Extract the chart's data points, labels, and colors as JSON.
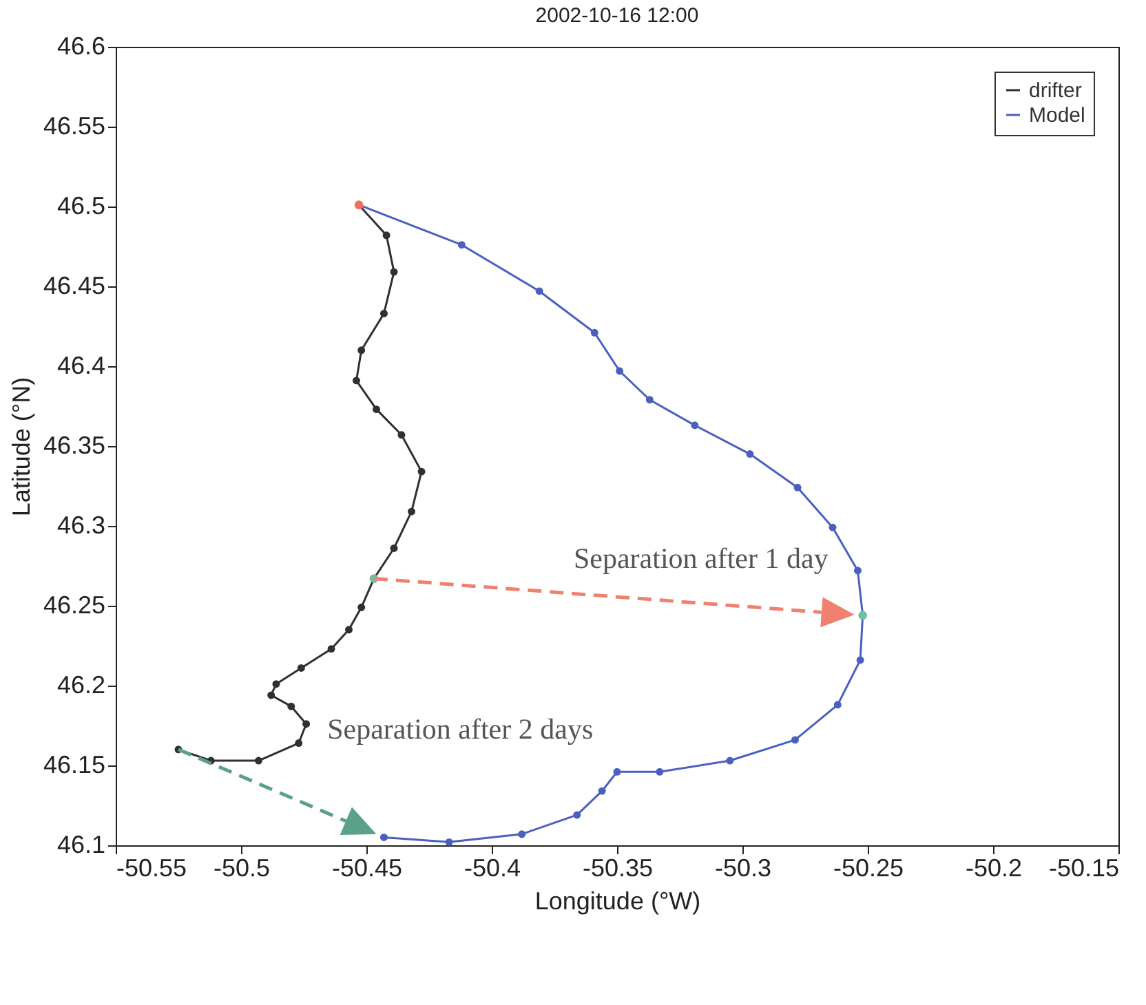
{
  "chart_data": {
    "type": "line",
    "title": "2002-10-16 12:00",
    "xlabel": "Longitude (°W)",
    "ylabel": "Latitude (°N)",
    "xlim": [
      -50.55,
      -50.15
    ],
    "xticks": [
      -50.55,
      -50.5,
      -50.45,
      -50.4,
      -50.35,
      -50.3,
      -50.25,
      -50.2,
      -50.15
    ],
    "ylim": [
      46.1,
      46.6
    ],
    "yticks": [
      46.1,
      46.15,
      46.2,
      46.25,
      46.3,
      46.35,
      46.4,
      46.45,
      46.5,
      46.55,
      46.6
    ],
    "legend": "top right",
    "marker": "circle",
    "grid": false,
    "series": [
      {
        "name": "drifter",
        "color": "#303030",
        "x": [
          -50.453,
          -50.442,
          -50.439,
          -50.443,
          -50.452,
          -50.454,
          -50.446,
          -50.436,
          -50.428,
          -50.432,
          -50.439,
          -50.447,
          -50.452,
          -50.457,
          -50.464,
          -50.476,
          -50.486,
          -50.488,
          -50.48,
          -50.474,
          -50.477,
          -50.493,
          -50.512,
          -50.525
        ],
        "values": [
          46.501,
          46.482,
          46.459,
          46.433,
          46.41,
          46.391,
          46.373,
          46.357,
          46.334,
          46.309,
          46.286,
          46.267,
          46.249,
          46.235,
          46.223,
          46.211,
          46.201,
          46.194,
          46.187,
          46.176,
          46.164,
          46.153,
          46.153,
          46.16
        ]
      },
      {
        "name": "Model",
        "color": "#4a5fc0",
        "x": [
          -50.453,
          -50.412,
          -50.381,
          -50.359,
          -50.349,
          -50.337,
          -50.319,
          -50.297,
          -50.278,
          -50.264,
          -50.254,
          -50.252,
          -50.253,
          -50.262,
          -50.279,
          -50.305,
          -50.333,
          -50.35,
          -50.356,
          -50.366,
          -50.388,
          -50.417,
          -50.443
        ],
        "values": [
          46.501,
          46.476,
          46.447,
          46.421,
          46.397,
          46.379,
          46.363,
          46.345,
          46.324,
          46.299,
          46.272,
          46.244,
          46.216,
          46.188,
          46.166,
          46.153,
          46.146,
          46.146,
          46.134,
          46.119,
          46.107,
          46.102,
          46.105
        ]
      },
      {
        "type": "scatter",
        "color": "#f07060",
        "x": [
          -50.453
        ],
        "values": [
          46.501
        ]
      },
      {
        "type": "scatter",
        "color": "#70c0a0",
        "x": [
          -50.447,
          -50.252
        ],
        "values": [
          46.267,
          46.244
        ]
      }
    ],
    "annotations": [
      "Separation after 1 day",
      "Separation after 2 days"
    ]
  }
}
